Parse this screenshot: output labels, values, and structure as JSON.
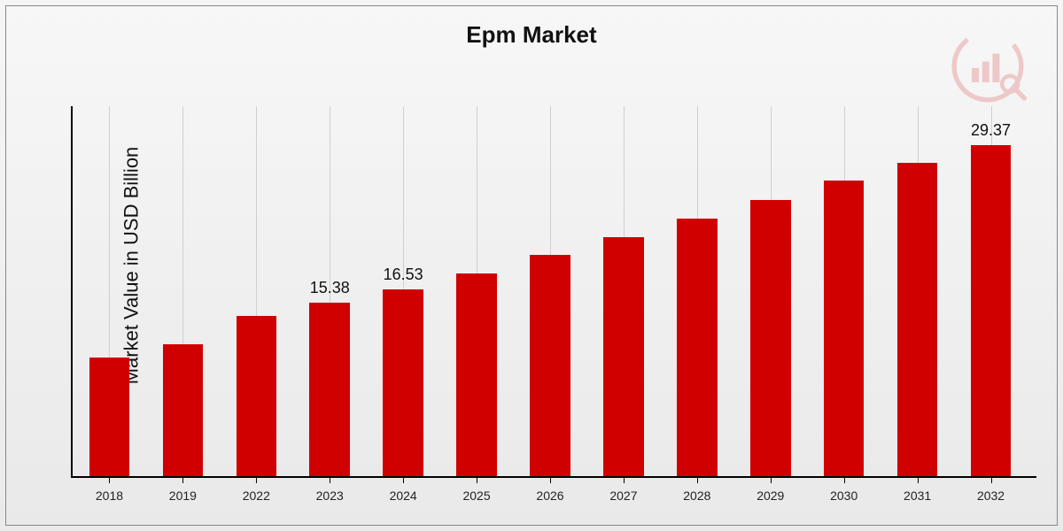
{
  "chart": {
    "type": "bar",
    "title": "Epm Market",
    "title_fontsize": 26,
    "title_fontweight": 700,
    "ylabel": "Market Value in USD Billion",
    "ylabel_fontsize": 22,
    "background_gradient_top": "#f7f7f7",
    "background_gradient_bottom": "#e9e9e9",
    "frame_border_color": "#888888",
    "axis_color": "#000000",
    "grid_color": "#cfcfcf",
    "bar_color": "#d10000",
    "bar_width_ratio": 0.55,
    "xlim": [
      0,
      13
    ],
    "ylim": [
      0,
      32
    ],
    "categories": [
      "2018",
      "2019",
      "2022",
      "2023",
      "2024",
      "2025",
      "2026",
      "2027",
      "2028",
      "2029",
      "2030",
      "2031",
      "2032"
    ],
    "values": [
      10.5,
      11.7,
      14.2,
      15.38,
      16.53,
      18.0,
      19.6,
      21.2,
      22.8,
      24.5,
      26.2,
      27.8,
      29.37
    ],
    "value_labels_visible": {
      "2023": "15.38",
      "2024": "16.53",
      "2032": "29.37"
    },
    "value_label_fontsize": 18,
    "xlabel_fontsize": 14,
    "logo_color": "#d10000",
    "logo_opacity": 0.18
  }
}
